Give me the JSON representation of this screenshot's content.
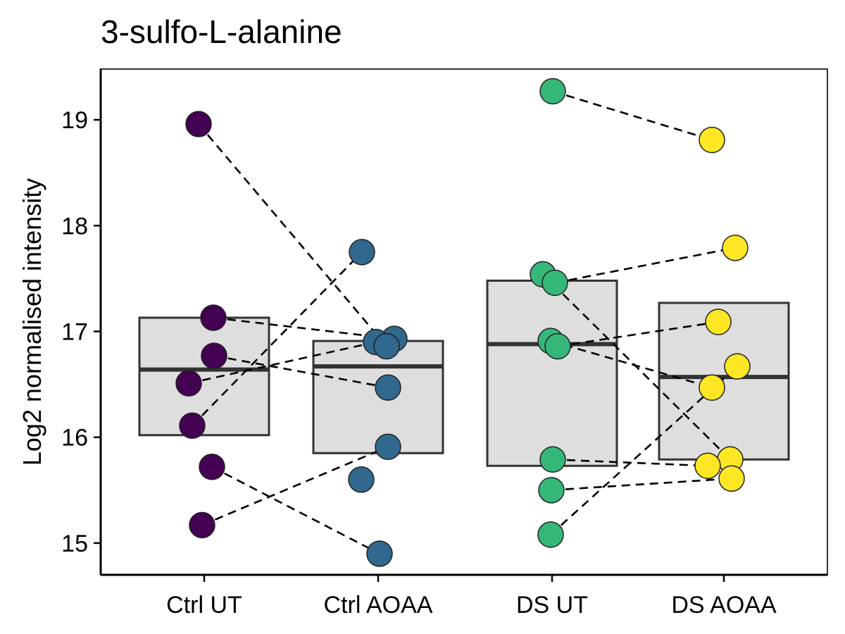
{
  "chart_data": {
    "type": "box",
    "title": "3-sulfo-L-alanine",
    "xlabel": "",
    "ylabel": "Log2 normalised intensity",
    "ylim": [
      14.7,
      19.48
    ],
    "yticks": [
      15,
      16,
      17,
      18,
      19
    ],
    "grid": false,
    "categories": [
      "Ctrl UT",
      "Ctrl AOAA",
      "DS UT",
      "DS AOAA"
    ],
    "colors": [
      "#440154",
      "#31688e",
      "#35b779",
      "#fde725"
    ],
    "box_fill": "#dedede",
    "box_stroke": "#333333",
    "boxes": [
      {
        "q1": 16.02,
        "median": 16.64,
        "q3": 17.13
      },
      {
        "q1": 15.85,
        "median": 16.67,
        "q3": 16.91
      },
      {
        "q1": 15.73,
        "median": 16.88,
        "q3": 17.48
      },
      {
        "q1": 15.79,
        "median": 16.57,
        "q3": 17.27
      }
    ],
    "points": [
      [
        18.96,
        17.13,
        16.77,
        16.51,
        16.11,
        15.72,
        15.17
      ],
      [
        17.75,
        16.93,
        16.9,
        16.86,
        16.47,
        15.91,
        15.6,
        14.9
      ],
      [
        19.27,
        17.54,
        17.46,
        16.91,
        16.86,
        15.79,
        15.5,
        15.08
      ],
      [
        18.81,
        17.79,
        17.09,
        16.67,
        16.47,
        15.79,
        15.73,
        15.61
      ]
    ],
    "pairs": [
      {
        "from": "Ctrl UT",
        "to": "Ctrl AOAA",
        "links": [
          [
            18.96,
            16.86
          ],
          [
            17.13,
            16.93
          ],
          [
            16.77,
            16.47
          ],
          [
            16.51,
            16.9
          ],
          [
            16.11,
            17.75
          ],
          [
            15.72,
            14.9
          ],
          [
            15.17,
            15.91
          ]
        ]
      },
      {
        "from": "DS UT",
        "to": "DS AOAA",
        "links": [
          [
            19.27,
            18.81
          ],
          [
            17.46,
            17.79
          ],
          [
            16.91,
            16.47
          ],
          [
            16.86,
            17.09
          ],
          [
            17.54,
            15.79
          ],
          [
            15.79,
            15.73
          ],
          [
            15.5,
            15.61
          ],
          [
            15.08,
            16.67
          ]
        ]
      }
    ]
  }
}
